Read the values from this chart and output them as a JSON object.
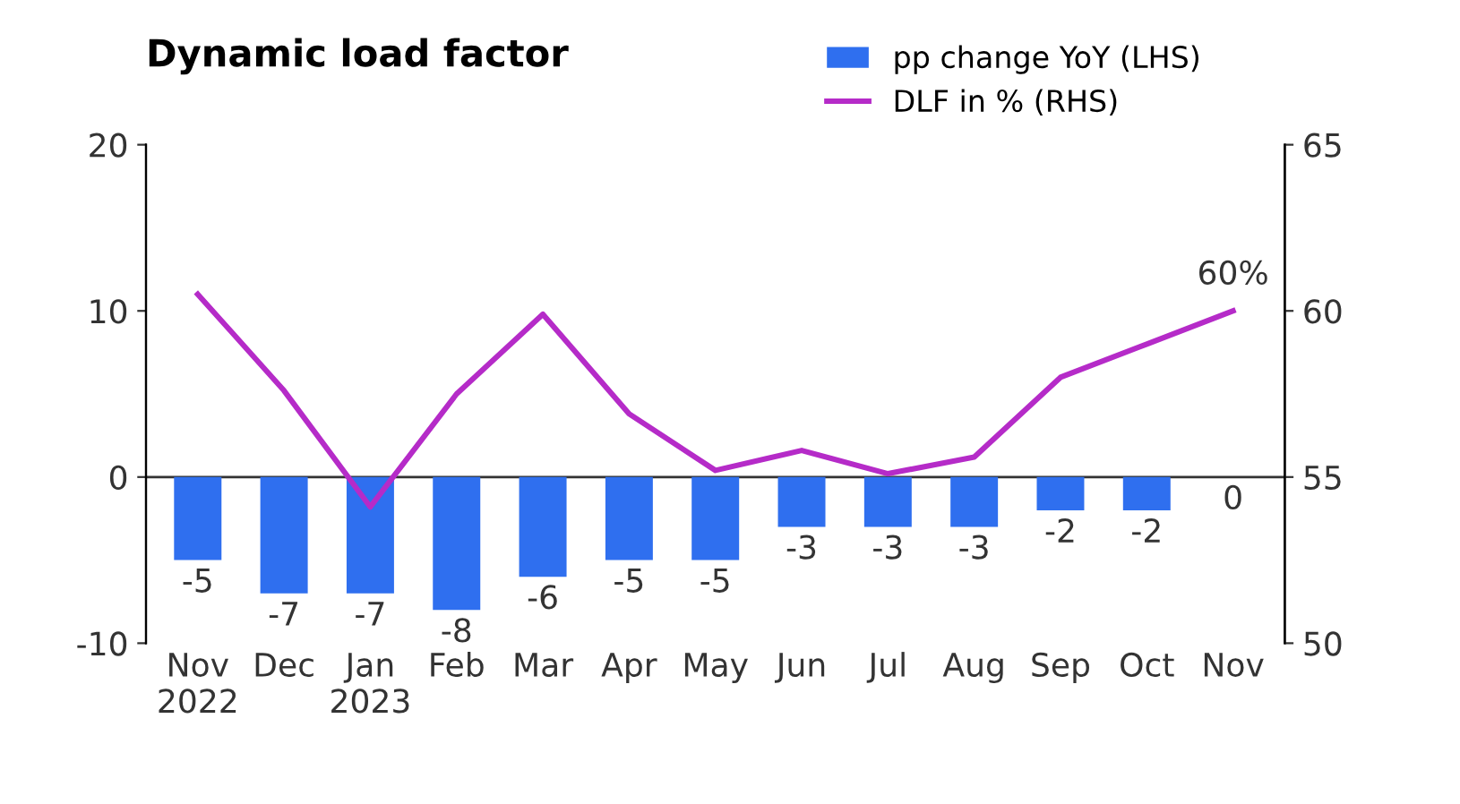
{
  "chart_data": {
    "type": "bar",
    "title": "Dynamic load factor",
    "categories": [
      "Nov\n2022",
      "Dec",
      "Jan\n2023",
      "Feb",
      "Mar",
      "Apr",
      "May",
      "Jun",
      "Jul",
      "Aug",
      "Sep",
      "Oct",
      "Nov"
    ],
    "series": [
      {
        "name": "pp change YoY (LHS)",
        "color": "#2f6fef",
        "values": [
          -5,
          -7,
          -7,
          -8,
          -6,
          -5,
          -5,
          -3,
          -3,
          -3,
          -2,
          -2,
          0
        ],
        "value_labels": [
          "-5",
          "-7",
          "-7",
          "-8",
          "-6",
          "-5",
          "-5",
          "-3",
          "-3",
          "-3",
          "-2",
          "-2",
          "0"
        ]
      },
      {
        "name": "DLF in % (RHS)",
        "type": "line",
        "axis": "y2",
        "color": "#b52bc8",
        "values": [
          60.5,
          57.6,
          54.1,
          57.5,
          59.9,
          56.9,
          55.2,
          55.8,
          55.1,
          55.6,
          58.0,
          59.0,
          60
        ],
        "value_labels": [
          null,
          null,
          null,
          null,
          null,
          null,
          null,
          null,
          null,
          null,
          null,
          null,
          "60%"
        ]
      }
    ],
    "ylim": [
      -10,
      20
    ],
    "yticks": [
      -10,
      0,
      10,
      20
    ],
    "y2lim": [
      50,
      65
    ],
    "y2ticks": [
      50,
      55,
      60,
      65
    ],
    "ref_lines": [
      {
        "axis": "y",
        "value": 0,
        "color": "#333333"
      }
    ],
    "legend": "top right",
    "grid": false,
    "marker": "none",
    "line_style": "solid"
  }
}
